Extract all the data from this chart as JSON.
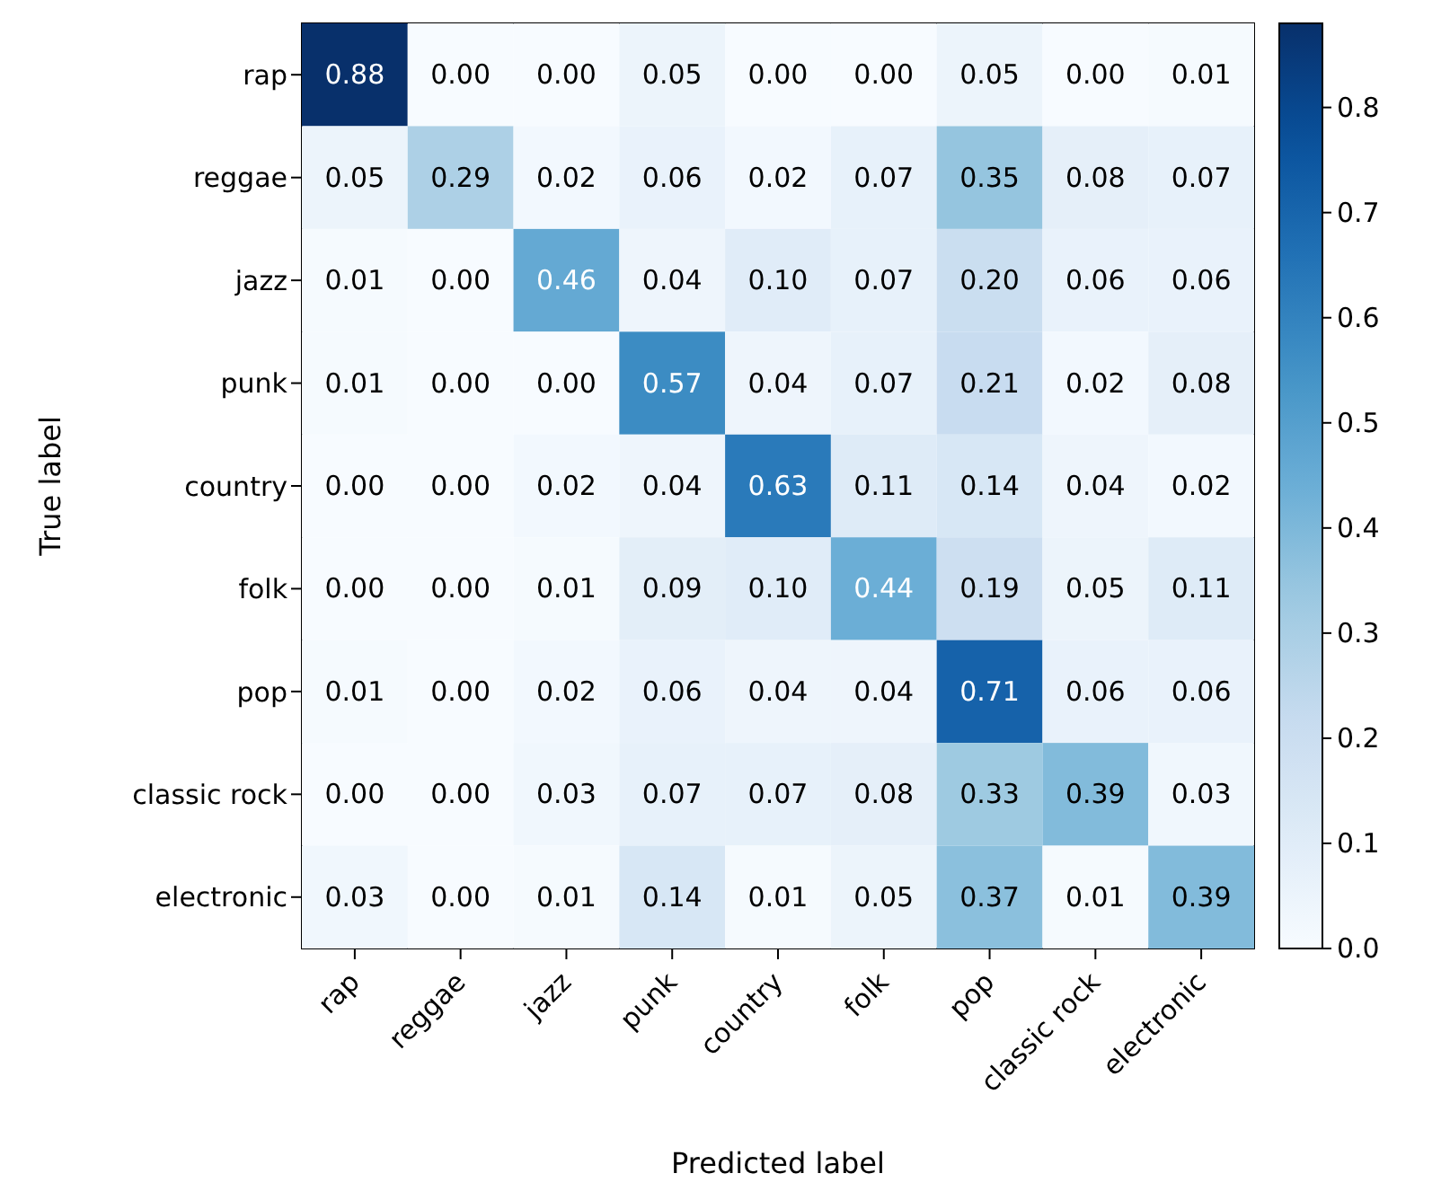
{
  "chart_data": {
    "type": "heatmap",
    "xlabel": "Predicted label",
    "ylabel": "True label",
    "categories": [
      "rap",
      "reggae",
      "jazz",
      "punk",
      "country",
      "folk",
      "pop",
      "classic rock",
      "electronic"
    ],
    "y_categories": [
      "rap",
      "reggae",
      "jazz",
      "punk",
      "country",
      "folk",
      "pop",
      "classic rock",
      "electronic"
    ],
    "cells": [
      [
        0.88,
        0,
        0,
        0.05,
        0,
        0,
        0.05,
        0,
        0.01
      ],
      [
        0.05,
        0.29,
        0.02,
        0.06,
        0.02,
        0.07,
        0.35,
        0.08,
        0.07
      ],
      [
        0.01,
        0,
        0.46,
        0.04,
        0.1,
        0.07,
        0.2,
        0.06,
        0.06
      ],
      [
        0.01,
        0,
        0,
        0.57,
        0.04,
        0.07,
        0.21,
        0.02,
        0.08
      ],
      [
        0,
        0,
        0.02,
        0.04,
        0.63,
        0.11,
        0.14,
        0.04,
        0.02
      ],
      [
        0,
        0,
        0.01,
        0.09,
        0.1,
        0.44,
        0.19,
        0.05,
        0.11
      ],
      [
        0.01,
        0,
        0.02,
        0.06,
        0.04,
        0.04,
        0.71,
        0.06,
        0.06
      ],
      [
        0,
        0,
        0.03,
        0.07,
        0.07,
        0.08,
        0.33,
        0.39,
        0.03
      ],
      [
        0.03,
        0,
        0.01,
        0.14,
        0.01,
        0.05,
        0.37,
        0.01,
        0.39
      ]
    ],
    "cell_labels": [
      [
        "0.88",
        "0.00",
        "0.00",
        "0.05",
        "0.00",
        "0.00",
        "0.05",
        "0.00",
        "0.01"
      ],
      [
        "0.05",
        "0.29",
        "0.02",
        "0.06",
        "0.02",
        "0.07",
        "0.35",
        "0.08",
        "0.07"
      ],
      [
        "0.01",
        "0.00",
        "0.46",
        "0.04",
        "0.10",
        "0.07",
        "0.20",
        "0.06",
        "0.06"
      ],
      [
        "0.01",
        "0.00",
        "0.00",
        "0.57",
        "0.04",
        "0.07",
        "0.21",
        "0.02",
        "0.08"
      ],
      [
        "0.00",
        "0.00",
        "0.02",
        "0.04",
        "0.63",
        "0.11",
        "0.14",
        "0.04",
        "0.02"
      ],
      [
        "0.00",
        "0.00",
        "0.01",
        "0.09",
        "0.10",
        "0.44",
        "0.19",
        "0.05",
        "0.11"
      ],
      [
        "0.01",
        "0.00",
        "0.02",
        "0.06",
        "0.04",
        "0.04",
        "0.71",
        "0.06",
        "0.06"
      ],
      [
        "0.00",
        "0.00",
        "0.03",
        "0.07",
        "0.07",
        "0.08",
        "0.33",
        "0.39",
        "0.03"
      ],
      [
        "0.03",
        "0.00",
        "0.01",
        "0.14",
        "0.01",
        "0.05",
        "0.37",
        "0.01",
        "0.39"
      ]
    ],
    "clim": [
      0,
      0.88
    ],
    "cticks": [
      {
        "value": 0,
        "label": "0.0"
      },
      {
        "value": 0.1,
        "label": "0.1"
      },
      {
        "value": 0.2,
        "label": "0.2"
      },
      {
        "value": 0.3,
        "label": "0.3"
      },
      {
        "value": 0.4,
        "label": "0.4"
      },
      {
        "value": 0.5,
        "label": "0.5"
      },
      {
        "value": 0.6,
        "label": "0.6"
      },
      {
        "value": 0.7,
        "label": "0.7"
      },
      {
        "value": 0.8,
        "label": "0.8"
      }
    ]
  }
}
